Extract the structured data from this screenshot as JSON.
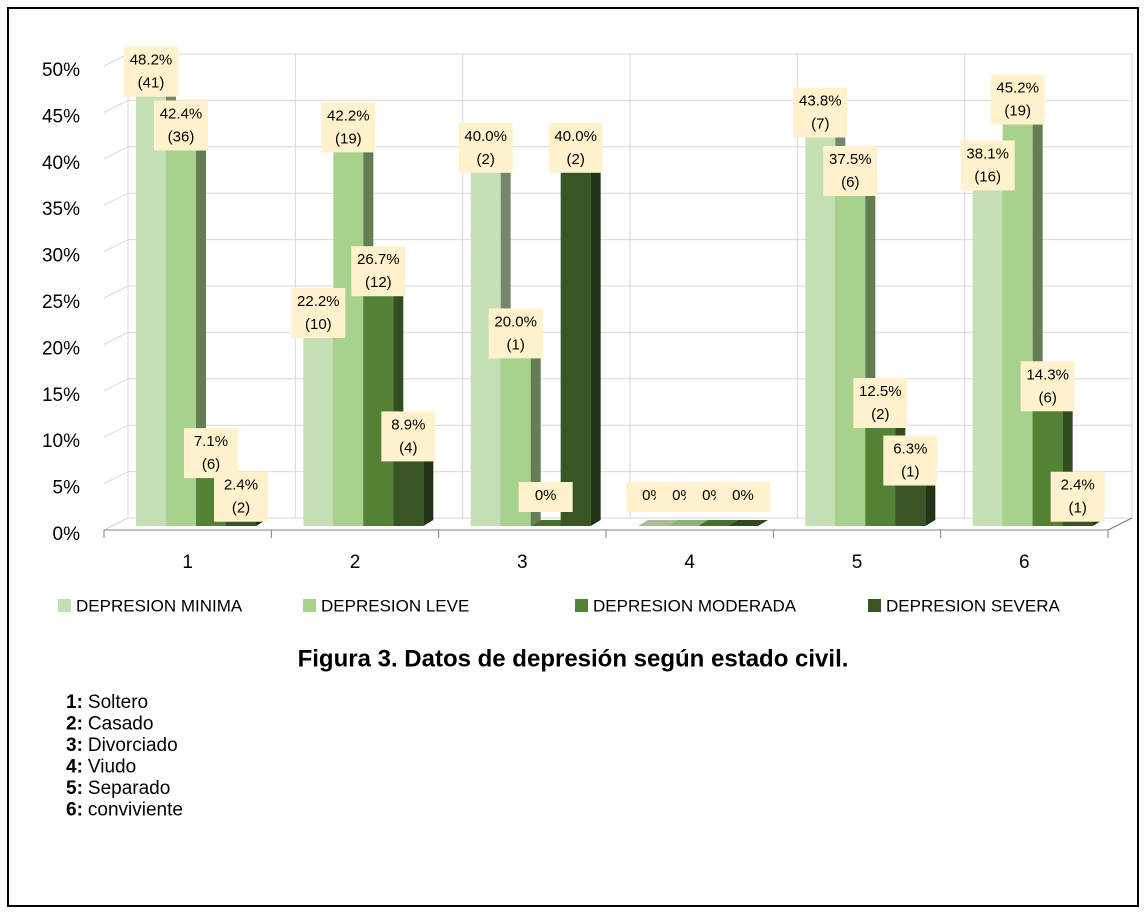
{
  "chart_data": {
    "type": "bar3d",
    "categories": [
      "1",
      "2",
      "3",
      "4",
      "5",
      "6"
    ],
    "series": [
      {
        "name": "DEPRESION MINIMA",
        "color": "#c5e0b4",
        "values": [
          48.2,
          22.2,
          40.0,
          0,
          43.8,
          38.1
        ],
        "value_labels": [
          "48.2%",
          "22.2%",
          "40.0%",
          "0%",
          "43.8%",
          "38.1%"
        ],
        "count_labels": [
          "(41)",
          "(10)",
          "(2)",
          null,
          "(7)",
          "(16)"
        ]
      },
      {
        "name": "DEPRESION LEVE",
        "color": "#a9d18e",
        "values": [
          42.4,
          42.2,
          20.0,
          0,
          37.5,
          45.2
        ],
        "value_labels": [
          "42.4%",
          "42.2%",
          "20.0%",
          "0%",
          "37.5%",
          "45.2%"
        ],
        "count_labels": [
          "(36)",
          "(19)",
          "(1)",
          null,
          "(6)",
          "(19)"
        ]
      },
      {
        "name": "DEPRESION MODERADA",
        "color": "#548235",
        "values": [
          7.1,
          26.7,
          0,
          0,
          12.5,
          14.3
        ],
        "value_labels": [
          "7.1%",
          "26.7%",
          "0%",
          "0%",
          "12.5%",
          "14.3%"
        ],
        "count_labels": [
          "(6)",
          "(12)",
          null,
          null,
          "(2)",
          "(6)"
        ]
      },
      {
        "name": "DEPRESION SEVERA",
        "color": "#375623",
        "values": [
          2.4,
          8.9,
          40.0,
          0,
          6.3,
          2.4
        ],
        "value_labels": [
          "2.4%",
          "8.9%",
          "40.0%",
          "0%",
          "6.3%",
          "2.4%"
        ],
        "count_labels": [
          "(2)",
          "(4)",
          "(2)",
          null,
          "(1)",
          "(1)"
        ]
      }
    ],
    "ylim": [
      0,
      50
    ],
    "yticks": [
      {
        "value": 0,
        "label": "0%"
      },
      {
        "value": 5,
        "label": "5%"
      },
      {
        "value": 10,
        "label": "10%"
      },
      {
        "value": 15,
        "label": "15%"
      },
      {
        "value": 20,
        "label": "20%"
      },
      {
        "value": 25,
        "label": "25%"
      },
      {
        "value": 30,
        "label": "30%"
      },
      {
        "value": 35,
        "label": "35%"
      },
      {
        "value": 40,
        "label": "40%"
      },
      {
        "value": 45,
        "label": "45%"
      },
      {
        "value": 50,
        "label": "50%"
      }
    ],
    "grid": true,
    "legend": "bottom"
  },
  "caption": "Figura 3. Datos de depresión según estado civil.",
  "key": [
    {
      "key": "1:",
      "label": "Soltero"
    },
    {
      "key": "2:",
      "label": "Casado"
    },
    {
      "key": "3:",
      "label": "Divorciado"
    },
    {
      "key": "4:",
      "label": "Viudo"
    },
    {
      "key": "5:",
      "label": "Separado"
    },
    {
      "key": "6:",
      "label": "conviviente"
    }
  ]
}
